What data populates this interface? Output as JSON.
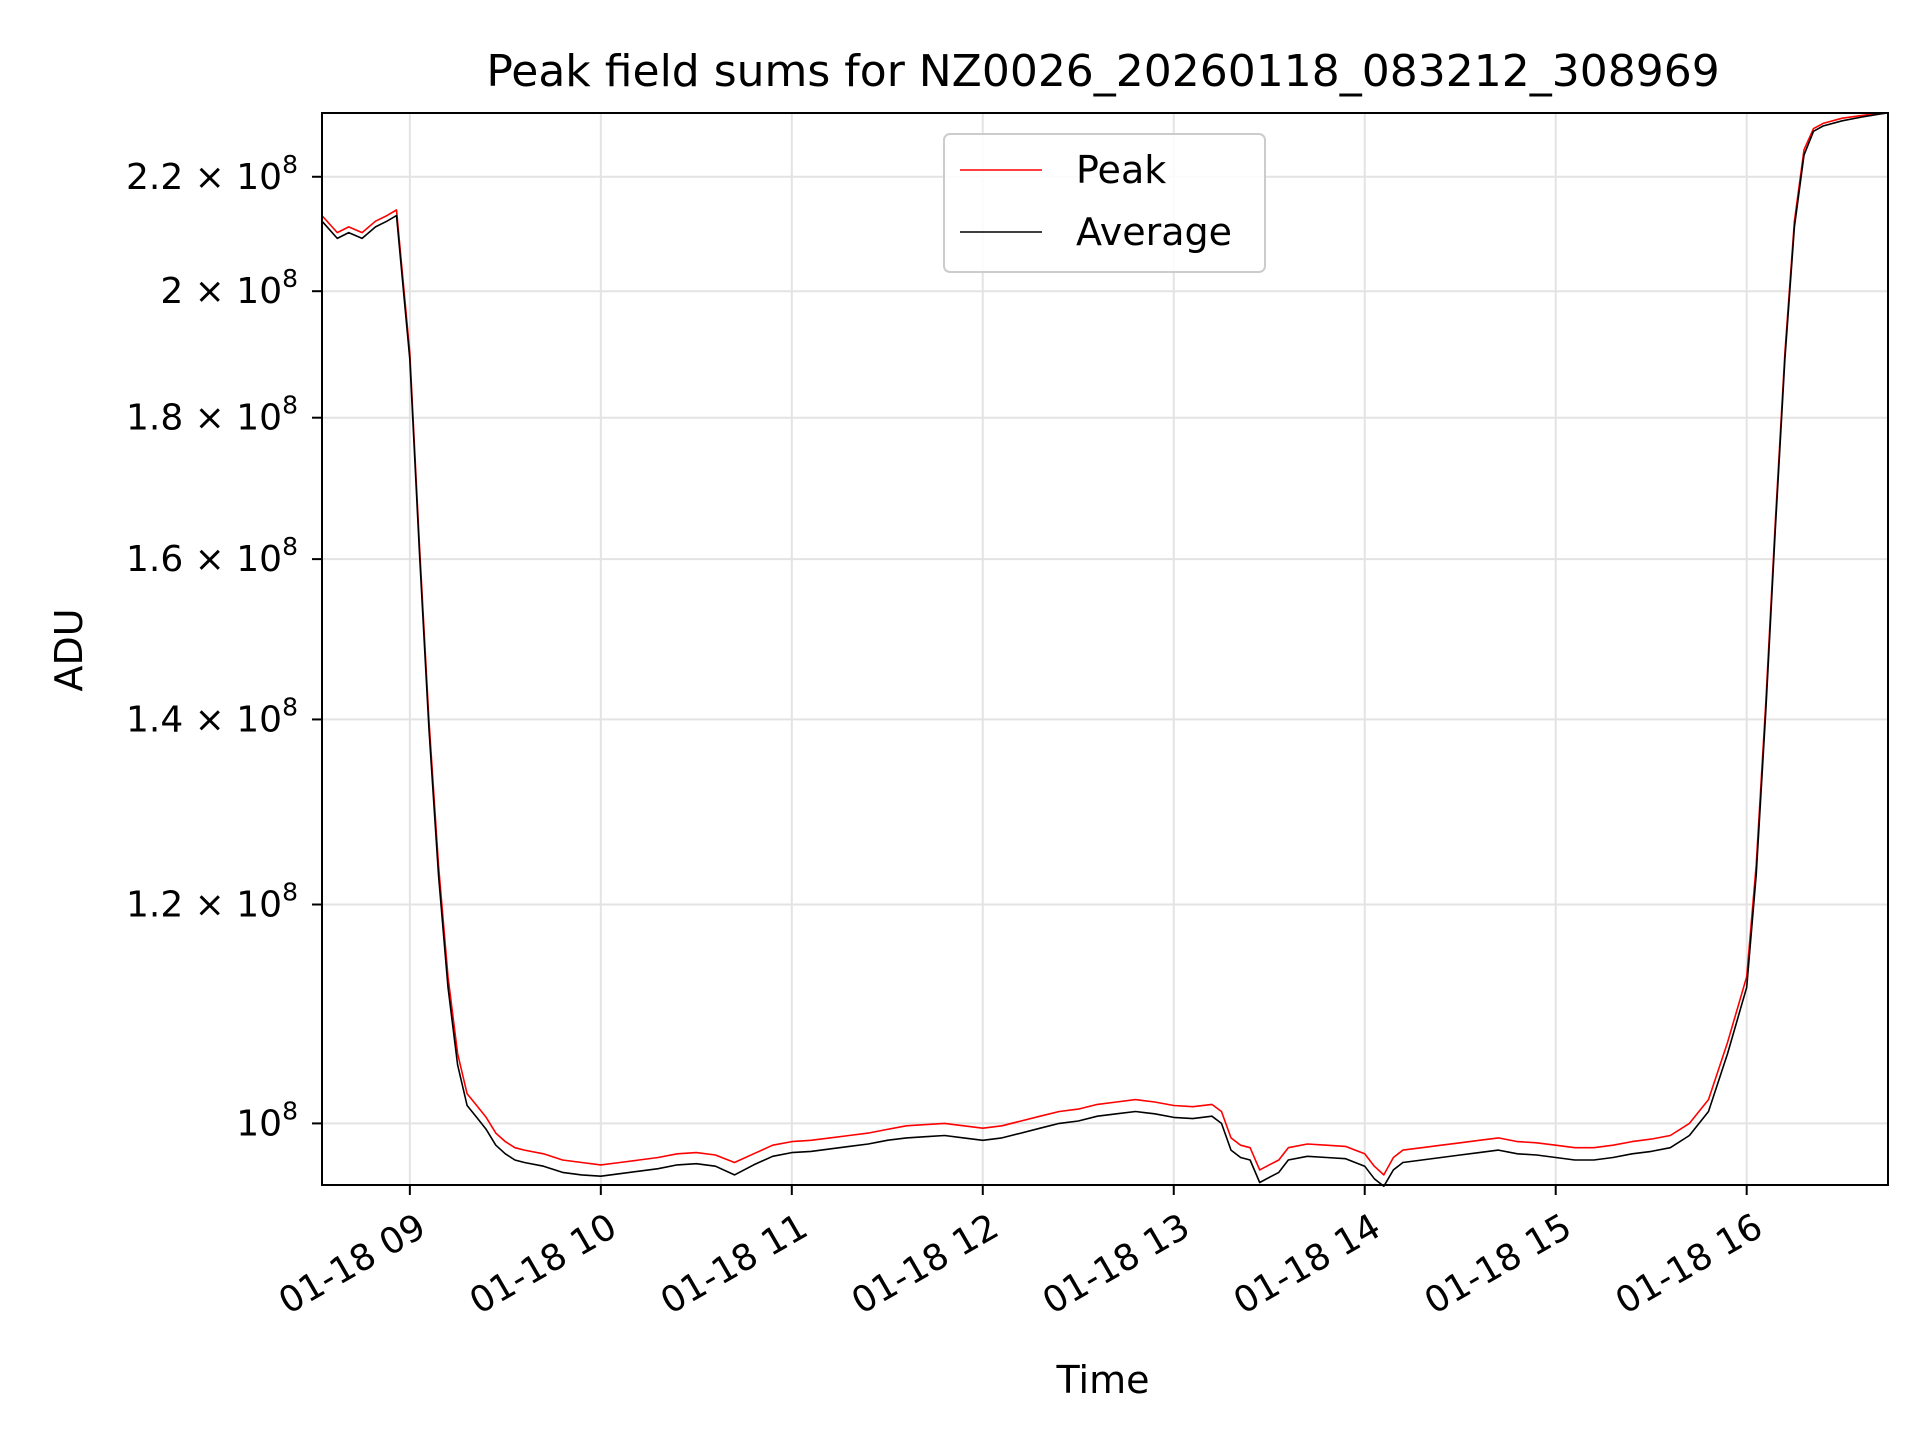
{
  "chart_data": {
    "type": "line",
    "title": "Peak field sums for NZ0026_20260118_083212_308969",
    "xlabel": "Time",
    "ylabel": "ADU",
    "y_scale": "log",
    "grid": true,
    "legend_position": "upper-center",
    "xlim": [
      8.54,
      16.74
    ],
    "ylim": [
      95000000.0,
      232000000.0
    ],
    "x_ticks": [
      {
        "value": 9,
        "label": "01-18 09"
      },
      {
        "value": 10,
        "label": "01-18 10"
      },
      {
        "value": 11,
        "label": "01-18 11"
      },
      {
        "value": 12,
        "label": "01-18 12"
      },
      {
        "value": 13,
        "label": "01-18 13"
      },
      {
        "value": 14,
        "label": "01-18 14"
      },
      {
        "value": 15,
        "label": "01-18 15"
      },
      {
        "value": 16,
        "label": "01-18 16"
      }
    ],
    "y_ticks": [
      {
        "value": 100000000.0,
        "mantissa": "",
        "exponent": "8"
      },
      {
        "value": 120000000.0,
        "mantissa": "1.2",
        "exponent": "8"
      },
      {
        "value": 140000000.0,
        "mantissa": "1.4",
        "exponent": "8"
      },
      {
        "value": 160000000.0,
        "mantissa": "1.6",
        "exponent": "8"
      },
      {
        "value": 180000000.0,
        "mantissa": "1.8",
        "exponent": "8"
      },
      {
        "value": 200000000.0,
        "mantissa": "2",
        "exponent": "8"
      },
      {
        "value": 220000000.0,
        "mantissa": "2.2",
        "exponent": "8"
      }
    ],
    "x_units": "hours (01-18)",
    "series": [
      {
        "name": "Peak",
        "color": "#ff0000",
        "x": [
          8.54,
          8.62,
          8.68,
          8.75,
          8.82,
          8.88,
          8.93,
          9.0,
          9.05,
          9.1,
          9.15,
          9.2,
          9.25,
          9.3,
          9.35,
          9.4,
          9.45,
          9.5,
          9.55,
          9.6,
          9.7,
          9.8,
          9.9,
          10.0,
          10.1,
          10.2,
          10.3,
          10.4,
          10.5,
          10.6,
          10.7,
          10.8,
          10.9,
          11.0,
          11.1,
          11.2,
          11.3,
          11.4,
          11.5,
          11.6,
          11.7,
          11.8,
          11.9,
          12.0,
          12.1,
          12.2,
          12.3,
          12.4,
          12.5,
          12.6,
          12.7,
          12.8,
          12.9,
          13.0,
          13.1,
          13.2,
          13.25,
          13.3,
          13.35,
          13.4,
          13.45,
          13.5,
          13.55,
          13.6,
          13.7,
          13.8,
          13.9,
          13.95,
          14.0,
          14.05,
          14.1,
          14.15,
          14.2,
          14.3,
          14.4,
          14.5,
          14.6,
          14.7,
          14.8,
          14.9,
          15.0,
          15.1,
          15.2,
          15.3,
          15.4,
          15.5,
          15.6,
          15.7,
          15.8,
          15.9,
          16.0,
          16.05,
          16.1,
          16.15,
          16.2,
          16.25,
          16.3,
          16.35,
          16.4,
          16.5,
          16.6,
          16.7,
          16.74
        ],
        "values": [
          213000000.0,
          210000000.0,
          211000000.0,
          210000000.0,
          212000000.0,
          213000000.0,
          214000000.0,
          190000000.0,
          162000000.0,
          140000000.0,
          124000000.0,
          113000000.0,
          106000000.0,
          102500000.0,
          101500000.0,
          100500000.0,
          99200000.0,
          98500000.0,
          98000000.0,
          97800000.0,
          97500000.0,
          97000000.0,
          96800000.0,
          96600000.0,
          96800000.0,
          97000000.0,
          97200000.0,
          97500000.0,
          97600000.0,
          97400000.0,
          96800000.0,
          97500000.0,
          98200000.0,
          98500000.0,
          98600000.0,
          98800000.0,
          99000000.0,
          99200000.0,
          99500000.0,
          99800000.0,
          99900000.0,
          100000000.0,
          99800000.0,
          99600000.0,
          99800000.0,
          100200000.0,
          100600000.0,
          101000000.0,
          101200000.0,
          101600000.0,
          101800000.0,
          102000000.0,
          101800000.0,
          101500000.0,
          101400000.0,
          101600000.0,
          101000000.0,
          98800000.0,
          98200000.0,
          98000000.0,
          96200000.0,
          96600000.0,
          97000000.0,
          98000000.0,
          98300000.0,
          98200000.0,
          98100000.0,
          97800000.0,
          97500000.0,
          96500000.0,
          95800000.0,
          97200000.0,
          97800000.0,
          98000000.0,
          98200000.0,
          98400000.0,
          98600000.0,
          98800000.0,
          98500000.0,
          98400000.0,
          98200000.0,
          98000000.0,
          98000000.0,
          98200000.0,
          98500000.0,
          98700000.0,
          99000000.0,
          100000000.0,
          102000000.0,
          107000000.0,
          113000000.0,
          124000000.0,
          142000000.0,
          165000000.0,
          190000000.0,
          212000000.0,
          225000000.0,
          229000000.0,
          230000000.0,
          231000000.0,
          231500000.0,
          232000000.0,
          232000000.0
        ]
      },
      {
        "name": "Average",
        "color": "#000000",
        "x": [
          8.54,
          8.62,
          8.68,
          8.75,
          8.82,
          8.88,
          8.93,
          9.0,
          9.05,
          9.1,
          9.15,
          9.2,
          9.25,
          9.3,
          9.35,
          9.4,
          9.45,
          9.5,
          9.55,
          9.6,
          9.7,
          9.8,
          9.9,
          10.0,
          10.1,
          10.2,
          10.3,
          10.4,
          10.5,
          10.6,
          10.7,
          10.8,
          10.9,
          11.0,
          11.1,
          11.2,
          11.3,
          11.4,
          11.5,
          11.6,
          11.7,
          11.8,
          11.9,
          12.0,
          12.1,
          12.2,
          12.3,
          12.4,
          12.5,
          12.6,
          12.7,
          12.8,
          12.9,
          13.0,
          13.1,
          13.2,
          13.25,
          13.3,
          13.35,
          13.4,
          13.45,
          13.5,
          13.55,
          13.6,
          13.7,
          13.8,
          13.9,
          13.95,
          14.0,
          14.05,
          14.1,
          14.15,
          14.2,
          14.3,
          14.4,
          14.5,
          14.6,
          14.7,
          14.8,
          14.9,
          15.0,
          15.1,
          15.2,
          15.3,
          15.4,
          15.5,
          15.6,
          15.7,
          15.8,
          15.9,
          16.0,
          16.05,
          16.1,
          16.15,
          16.2,
          16.25,
          16.3,
          16.35,
          16.4,
          16.5,
          16.6,
          16.7,
          16.74
        ],
        "values": [
          212000000.0,
          209000000.0,
          210000000.0,
          209000000.0,
          211000000.0,
          212000000.0,
          213000000.0,
          189000000.0,
          161000000.0,
          139000000.0,
          123000000.0,
          112000000.0,
          105000000.0,
          101500000.0,
          100500000.0,
          99500000.0,
          98200000.0,
          97500000.0,
          97000000.0,
          96800000.0,
          96500000.0,
          96000000.0,
          95800000.0,
          95700000.0,
          95900000.0,
          96100000.0,
          96300000.0,
          96600000.0,
          96700000.0,
          96500000.0,
          95800000.0,
          96600000.0,
          97300000.0,
          97600000.0,
          97700000.0,
          97900000.0,
          98100000.0,
          98300000.0,
          98600000.0,
          98800000.0,
          98900000.0,
          99000000.0,
          98800000.0,
          98600000.0,
          98800000.0,
          99200000.0,
          99600000.0,
          100000000.0,
          100200000.0,
          100600000.0,
          100800000.0,
          101000000.0,
          100800000.0,
          100500000.0,
          100400000.0,
          100600000.0,
          100000000.0,
          97800000.0,
          97200000.0,
          97000000.0,
          95200000.0,
          95600000.0,
          96000000.0,
          97000000.0,
          97300000.0,
          97200000.0,
          97100000.0,
          96800000.0,
          96500000.0,
          95500000.0,
          94900000.0,
          96200000.0,
          96800000.0,
          97000000.0,
          97200000.0,
          97400000.0,
          97600000.0,
          97800000.0,
          97500000.0,
          97400000.0,
          97200000.0,
          97000000.0,
          97000000.0,
          97200000.0,
          97500000.0,
          97700000.0,
          98000000.0,
          99000000.0,
          101000000.0,
          106000000.0,
          112000000.0,
          123000000.0,
          141000000.0,
          164000000.0,
          189000000.0,
          211000000.0,
          224000000.0,
          228500000.0,
          229500000.0,
          230500000.0,
          231200000.0,
          231800000.0,
          232000000.0
        ]
      }
    ]
  }
}
